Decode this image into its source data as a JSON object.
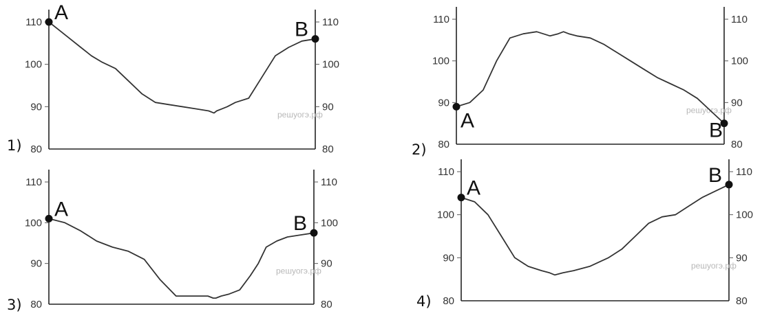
{
  "chart_data": [
    {
      "type": "line",
      "option_label": "1)",
      "ylim": [
        80,
        110
      ],
      "yticks": [
        80,
        90,
        100,
        110
      ],
      "x": [
        0,
        4,
        8,
        12,
        16,
        20,
        25,
        30,
        35,
        40,
        45,
        50,
        55,
        60,
        62,
        63,
        65,
        67,
        70,
        75,
        80,
        85,
        90,
        95,
        100
      ],
      "y": [
        110,
        108,
        106,
        104,
        102,
        100.5,
        99,
        96,
        93,
        91,
        90.5,
        90,
        89.5,
        89,
        88.5,
        89,
        89.5,
        90,
        91,
        92,
        97,
        102,
        104,
        105.5,
        106
      ],
      "points": [
        {
          "name": "A",
          "x": 0,
          "y": 110
        },
        {
          "name": "B",
          "x": 100,
          "y": 106
        }
      ],
      "watermark": "решуогэ.рф"
    },
    {
      "type": "line",
      "option_label": "2)",
      "ylim": [
        80,
        110
      ],
      "yticks": [
        80,
        90,
        100,
        110
      ],
      "x": [
        0,
        5,
        10,
        15,
        20,
        25,
        30,
        35,
        38,
        40,
        42,
        45,
        50,
        55,
        60,
        65,
        70,
        75,
        80,
        85,
        90,
        95,
        100
      ],
      "y": [
        89,
        90,
        93,
        100,
        105.5,
        106.5,
        107,
        106,
        106.5,
        107,
        106.5,
        106,
        105.5,
        104,
        102,
        100,
        98,
        96,
        94.5,
        93,
        91,
        88,
        85
      ],
      "points": [
        {
          "name": "A",
          "x": 0,
          "y": 89
        },
        {
          "name": "B",
          "x": 100,
          "y": 85
        }
      ],
      "watermark": "решуогэ.рф"
    },
    {
      "type": "line",
      "option_label": "3)",
      "ylim": [
        80,
        110
      ],
      "yticks": [
        80,
        90,
        100,
        110
      ],
      "x": [
        0,
        6,
        12,
        18,
        24,
        30,
        36,
        42,
        48,
        52,
        55,
        60,
        62,
        63,
        65,
        68,
        72,
        76,
        79,
        82,
        86,
        90,
        95,
        100
      ],
      "y": [
        101,
        100,
        98,
        95.5,
        94,
        93,
        91,
        86,
        82,
        82,
        82,
        82,
        81.5,
        81.5,
        82,
        82.5,
        83.5,
        87,
        90,
        94,
        95.5,
        96.5,
        97,
        97.5
      ],
      "points": [
        {
          "name": "A",
          "x": 0,
          "y": 101
        },
        {
          "name": "B",
          "x": 100,
          "y": 97.5
        }
      ],
      "watermark": "решуогэ.рф"
    },
    {
      "type": "line",
      "option_label": "4)",
      "ylim": [
        80,
        110
      ],
      "yticks": [
        80,
        90,
        100,
        110
      ],
      "x": [
        0,
        5,
        10,
        15,
        20,
        25,
        30,
        33,
        35,
        38,
        42,
        48,
        55,
        60,
        65,
        70,
        75,
        80,
        85,
        90,
        95,
        100
      ],
      "y": [
        104,
        103,
        100,
        95,
        90,
        88,
        87,
        86.5,
        86,
        86.5,
        87,
        88,
        90,
        92,
        95,
        98,
        99.5,
        100,
        102,
        104,
        105.5,
        107
      ],
      "points": [
        {
          "name": "A",
          "x": 0,
          "y": 104
        },
        {
          "name": "B",
          "x": 100,
          "y": 107
        }
      ],
      "watermark": "решуогэ.рф"
    }
  ]
}
